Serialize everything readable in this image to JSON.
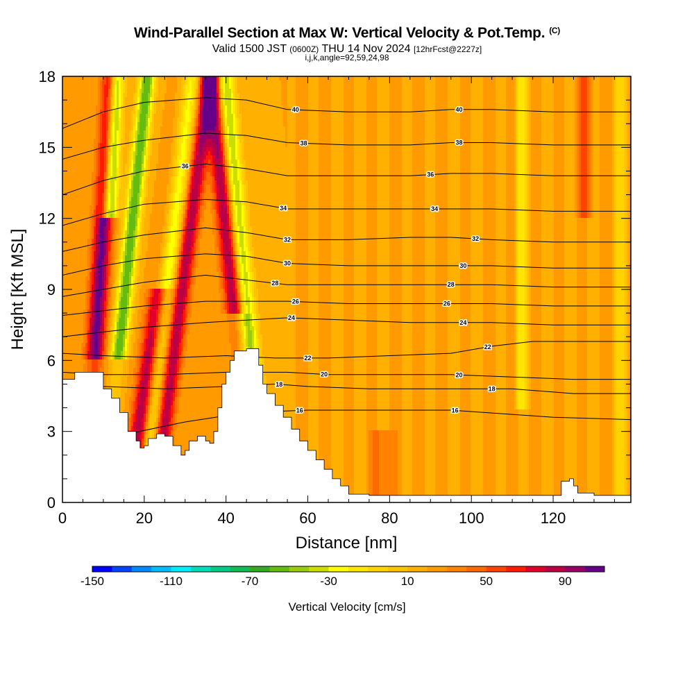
{
  "header": {
    "title": "Wind-Parallel Section at Max W: Vertical Velocity & Pot.Temp.",
    "title_mark": "(C)",
    "valid_prefix": "Valid 1500 JST",
    "valid_utc": "(0600Z)",
    "valid_date": "THU 14 Nov 2024",
    "forecast": "[12hrFcst@2227z]",
    "grid_info": "i,j,k,angle=92,59,24,98"
  },
  "chart_data": {
    "type": "heatmap",
    "xlabel": "Distance [nm]",
    "ylabel": "Height [Kft MSL]",
    "xlim": [
      0,
      139
    ],
    "ylim": [
      0,
      18
    ],
    "x_ticks": [
      0,
      20,
      40,
      60,
      80,
      100,
      120
    ],
    "y_ticks": [
      0,
      3,
      6,
      9,
      12,
      15,
      18
    ],
    "colorbar": {
      "title": "Vertical Velocity [cm/s]",
      "min": -150,
      "max": 110,
      "step": 10,
      "tick_labels": [
        "-150",
        "-110",
        "-70",
        "-30",
        "10",
        "50",
        "90"
      ],
      "tick_values": [
        -150,
        -110,
        -70,
        -30,
        10,
        50,
        90
      ],
      "colors": [
        "#0000ff",
        "#0044ff",
        "#0088ff",
        "#00bbff",
        "#00eeff",
        "#00ddbb",
        "#00cc88",
        "#11bb55",
        "#33aa22",
        "#66bb11",
        "#99cc11",
        "#ccdd00",
        "#ffff00",
        "#ffe600",
        "#ffd200",
        "#ffc400",
        "#ffb000",
        "#ff9a00",
        "#ff8200",
        "#ff6a00",
        "#ff4400",
        "#ff1a00",
        "#e0002a",
        "#bb0044",
        "#990066",
        "#660088"
      ]
    },
    "theta_contour_labels": [
      "16",
      "18",
      "20",
      "22",
      "24",
      "26",
      "28",
      "30",
      "32",
      "34",
      "36",
      "38",
      "40"
    ],
    "theta_contours": [
      {
        "label": "16",
        "points": [
          [
            9,
            2.6
          ],
          [
            16,
            2.9
          ],
          [
            30,
            3.4
          ],
          [
            45,
            3.8
          ],
          [
            60,
            3.9
          ],
          [
            75,
            3.9
          ],
          [
            95,
            3.9
          ],
          [
            120,
            3.6
          ],
          [
            139,
            3.5
          ]
        ]
      },
      {
        "label": "18",
        "points": [
          [
            0,
            5.0
          ],
          [
            10,
            4.9
          ],
          [
            25,
            4.8
          ],
          [
            40,
            4.9
          ],
          [
            52,
            5.0
          ],
          [
            60,
            4.9
          ],
          [
            75,
            4.8
          ],
          [
            95,
            4.8
          ],
          [
            110,
            4.8
          ],
          [
            125,
            4.6
          ],
          [
            139,
            4.6
          ]
        ]
      },
      {
        "label": "20",
        "points": [
          [
            0,
            5.5
          ],
          [
            10,
            5.4
          ],
          [
            25,
            5.4
          ],
          [
            40,
            5.5
          ],
          [
            55,
            5.5
          ],
          [
            65,
            5.4
          ],
          [
            80,
            5.4
          ],
          [
            95,
            5.4
          ],
          [
            110,
            5.3
          ],
          [
            125,
            5.2
          ],
          [
            139,
            5.2
          ]
        ]
      },
      {
        "label": "22",
        "points": [
          [
            0,
            6.3
          ],
          [
            10,
            6.2
          ],
          [
            25,
            6.1
          ],
          [
            40,
            6.2
          ],
          [
            52,
            6.1
          ],
          [
            65,
            6.1
          ],
          [
            80,
            6.2
          ],
          [
            95,
            6.3
          ],
          [
            105,
            6.6
          ],
          [
            115,
            6.8
          ],
          [
            125,
            6.8
          ],
          [
            139,
            6.8
          ]
        ]
      },
      {
        "label": "24",
        "points": [
          [
            0,
            7.0
          ],
          [
            10,
            7.2
          ],
          [
            20,
            7.4
          ],
          [
            35,
            7.6
          ],
          [
            45,
            7.7
          ],
          [
            55,
            7.8
          ],
          [
            70,
            7.7
          ],
          [
            85,
            7.6
          ],
          [
            95,
            7.6
          ],
          [
            105,
            7.6
          ],
          [
            120,
            7.5
          ],
          [
            139,
            7.5
          ]
        ]
      },
      {
        "label": "26",
        "points": [
          [
            0,
            7.9
          ],
          [
            10,
            8.1
          ],
          [
            20,
            8.3
          ],
          [
            35,
            8.5
          ],
          [
            45,
            8.5
          ],
          [
            55,
            8.5
          ],
          [
            70,
            8.4
          ],
          [
            85,
            8.4
          ],
          [
            95,
            8.4
          ],
          [
            105,
            8.4
          ],
          [
            120,
            8.3
          ],
          [
            139,
            8.3
          ]
        ]
      },
      {
        "label": "28",
        "points": [
          [
            0,
            8.7
          ],
          [
            10,
            9.0
          ],
          [
            20,
            9.3
          ],
          [
            35,
            9.6
          ],
          [
            45,
            9.4
          ],
          [
            55,
            9.2
          ],
          [
            70,
            9.2
          ],
          [
            85,
            9.2
          ],
          [
            95,
            9.2
          ],
          [
            105,
            9.2
          ],
          [
            120,
            9.1
          ],
          [
            139,
            9.1
          ]
        ]
      },
      {
        "label": "30",
        "points": [
          [
            0,
            9.6
          ],
          [
            10,
            10.0
          ],
          [
            20,
            10.3
          ],
          [
            35,
            10.5
          ],
          [
            45,
            10.4
          ],
          [
            55,
            10.1
          ],
          [
            70,
            10.0
          ],
          [
            85,
            10.0
          ],
          [
            95,
            10.0
          ],
          [
            105,
            10.0
          ],
          [
            120,
            9.9
          ],
          [
            139,
            9.9
          ]
        ]
      },
      {
        "label": "32",
        "points": [
          [
            0,
            10.6
          ],
          [
            10,
            11.0
          ],
          [
            20,
            11.3
          ],
          [
            35,
            11.6
          ],
          [
            45,
            11.4
          ],
          [
            55,
            11.1
          ],
          [
            70,
            11.1
          ],
          [
            85,
            11.2
          ],
          [
            95,
            11.2
          ],
          [
            105,
            11.1
          ],
          [
            120,
            11.0
          ],
          [
            139,
            11.0
          ]
        ]
      },
      {
        "label": "34",
        "points": [
          [
            0,
            11.7
          ],
          [
            10,
            12.2
          ],
          [
            20,
            12.6
          ],
          [
            35,
            12.8
          ],
          [
            45,
            12.7
          ],
          [
            55,
            12.4
          ],
          [
            70,
            12.4
          ],
          [
            85,
            12.4
          ],
          [
            95,
            12.4
          ],
          [
            105,
            12.4
          ],
          [
            120,
            12.3
          ],
          [
            139,
            12.3
          ]
        ]
      },
      {
        "label": "36",
        "points": [
          [
            0,
            13.0
          ],
          [
            10,
            13.6
          ],
          [
            20,
            14.0
          ],
          [
            35,
            14.3
          ],
          [
            45,
            14.1
          ],
          [
            55,
            13.8
          ],
          [
            70,
            13.8
          ],
          [
            85,
            13.8
          ],
          [
            95,
            13.9
          ],
          [
            105,
            13.9
          ],
          [
            120,
            13.8
          ],
          [
            139,
            13.8
          ]
        ]
      },
      {
        "label": "38",
        "points": [
          [
            0,
            14.5
          ],
          [
            10,
            15.0
          ],
          [
            20,
            15.3
          ],
          [
            35,
            15.6
          ],
          [
            45,
            15.5
          ],
          [
            55,
            15.2
          ],
          [
            70,
            15.1
          ],
          [
            85,
            15.1
          ],
          [
            95,
            15.2
          ],
          [
            105,
            15.2
          ],
          [
            120,
            15.1
          ],
          [
            139,
            15.1
          ]
        ]
      },
      {
        "label": "40",
        "points": [
          [
            0,
            15.8
          ],
          [
            10,
            16.5
          ],
          [
            20,
            16.9
          ],
          [
            35,
            17.1
          ],
          [
            45,
            17.0
          ],
          [
            55,
            16.6
          ],
          [
            70,
            16.5
          ],
          [
            85,
            16.5
          ],
          [
            95,
            16.6
          ],
          [
            105,
            16.6
          ],
          [
            120,
            16.5
          ],
          [
            139,
            16.5
          ]
        ]
      }
    ],
    "terrain": [
      [
        0,
        5.2
      ],
      [
        3,
        5.5
      ],
      [
        8,
        5.5
      ],
      [
        10,
        4.8
      ],
      [
        12,
        4.4
      ],
      [
        14,
        3.8
      ],
      [
        16,
        3.0
      ],
      [
        18,
        2.6
      ],
      [
        19,
        2.3
      ],
      [
        20,
        2.4
      ],
      [
        21,
        2.7
      ],
      [
        23,
        2.9
      ],
      [
        25,
        2.8
      ],
      [
        27,
        2.4
      ],
      [
        29,
        2.0
      ],
      [
        30,
        2.2
      ],
      [
        31,
        2.6
      ],
      [
        33,
        2.8
      ],
      [
        35,
        2.6
      ],
      [
        36,
        2.5
      ],
      [
        37,
        3.0
      ],
      [
        38,
        4.0
      ],
      [
        39,
        5.0
      ],
      [
        40,
        5.5
      ],
      [
        41,
        6.0
      ],
      [
        42,
        6.4
      ],
      [
        45,
        6.5
      ],
      [
        47,
        6.5
      ],
      [
        48,
        5.8
      ],
      [
        49,
        5.0
      ],
      [
        50,
        4.6
      ],
      [
        52,
        4.1
      ],
      [
        54,
        3.6
      ],
      [
        56,
        3.1
      ],
      [
        58,
        2.6
      ],
      [
        60,
        2.2
      ],
      [
        62,
        1.8
      ],
      [
        64,
        1.4
      ],
      [
        66,
        1.0
      ],
      [
        68,
        0.7
      ],
      [
        70,
        0.35
      ],
      [
        75,
        0.3
      ],
      [
        90,
        0.3
      ],
      [
        110,
        0.3
      ],
      [
        121,
        0.3
      ],
      [
        122,
        0.9
      ],
      [
        124,
        1.0
      ],
      [
        125,
        0.7
      ],
      [
        126,
        0.4
      ],
      [
        130,
        0.3
      ],
      [
        139,
        0.3
      ]
    ]
  }
}
